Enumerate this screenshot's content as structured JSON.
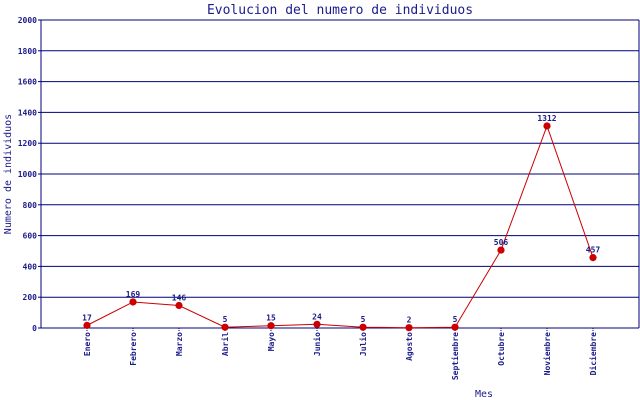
{
  "chart_data": {
    "type": "line",
    "title": "Evolucion del numero de individuos",
    "xlabel": "Mes",
    "ylabel": "Numero de individuos",
    "categories": [
      "Enero",
      "Febrero",
      "Marzo",
      "Abril",
      "Mayo",
      "Junio",
      "Julio",
      "Agosto",
      "Septiembre",
      "Octubre",
      "Noviembre",
      "Diciembre"
    ],
    "series": [
      {
        "values": [
          17,
          169,
          146,
          5,
          15,
          24,
          5,
          2,
          5,
          506,
          1312,
          457
        ]
      }
    ],
    "data_labels": [
      "17",
      "169",
      "146",
      "5",
      "15",
      "24",
      "5",
      "2",
      "5",
      "506",
      "1312",
      "457"
    ],
    "ylim": [
      0,
      2000
    ],
    "yticks": [
      0,
      200,
      400,
      600,
      800,
      1000,
      1200,
      1400,
      1600,
      1800,
      2000
    ],
    "grid": true,
    "colors": {
      "line": "#cc0000",
      "marker": "#cc0000",
      "grid": "#00007a",
      "text": "#1b1b8a",
      "axis": "#00007a"
    }
  }
}
